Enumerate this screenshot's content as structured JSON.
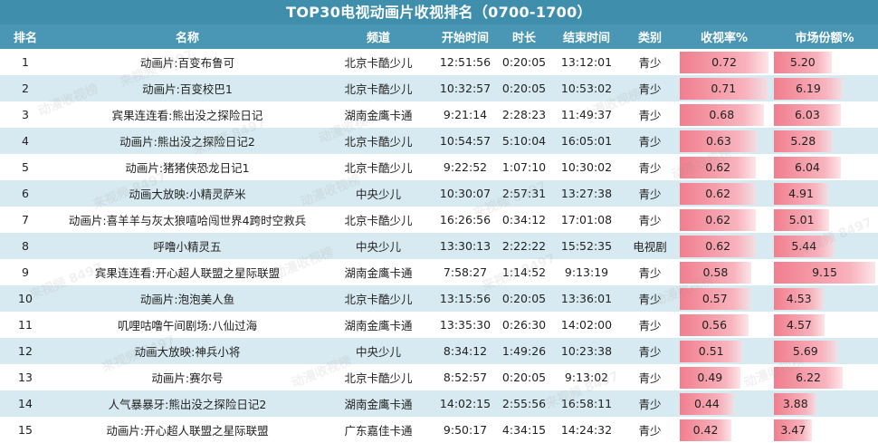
{
  "title": "TOP30电视动画片收视排名（0700-1700）",
  "headers": [
    "排名",
    "名称",
    "频道",
    "开始时间",
    "时长",
    "结束时间",
    "类别",
    "收视率%",
    "市场份额%"
  ],
  "rows": [
    {
      "rank": "1",
      "name": "动画片:百变布鲁可",
      "channel": "北京卡酷少儿",
      "start": "12:51:56",
      "duration": "0:20:05",
      "end": "13:12:01",
      "category": "青少",
      "rating": "0.72",
      "share": "5.20"
    },
    {
      "rank": "2",
      "name": "动画片:百变校巴1",
      "channel": "北京卡酷少儿",
      "start": "10:32:57",
      "duration": "0:20:05",
      "end": "10:53:02",
      "category": "青少",
      "rating": "0.71",
      "share": "6.19"
    },
    {
      "rank": "3",
      "name": "宾果连连看:熊出没之探险日记",
      "channel": "湖南金鹰卡通",
      "start": "9:21:14",
      "duration": "2:28:23",
      "end": "11:49:37",
      "category": "青少",
      "rating": "0.68",
      "share": "6.03"
    },
    {
      "rank": "4",
      "name": "动画片:熊出没之探险日记2",
      "channel": "北京卡酷少儿",
      "start": "10:54:57",
      "duration": "5:10:04",
      "end": "16:05:01",
      "category": "青少",
      "rating": "0.63",
      "share": "5.28"
    },
    {
      "rank": "5",
      "name": "动画片:猪猪侠恐龙日记1",
      "channel": "北京卡酷少儿",
      "start": "9:22:52",
      "duration": "1:07:10",
      "end": "10:30:02",
      "category": "青少",
      "rating": "0.62",
      "share": "6.04"
    },
    {
      "rank": "6",
      "name": "动画大放映:小精灵萨米",
      "channel": "中央少儿",
      "start": "10:30:07",
      "duration": "2:57:31",
      "end": "13:27:38",
      "category": "青少",
      "rating": "0.62",
      "share": "4.91"
    },
    {
      "rank": "7",
      "name": "动画片:喜羊羊与灰太狼嘻哈闯世界4跨时空救兵",
      "channel": "北京卡酷少儿",
      "start": "16:26:56",
      "duration": "0:34:12",
      "end": "17:01:08",
      "category": "青少",
      "rating": "0.62",
      "share": "5.01"
    },
    {
      "rank": "8",
      "name": "呼噜小精灵五",
      "channel": "中央少儿",
      "start": "13:30:13",
      "duration": "2:22:22",
      "end": "15:52:35",
      "category": "电视剧",
      "rating": "0.62",
      "share": "5.44"
    },
    {
      "rank": "9",
      "name": "宾果连连看:开心超人联盟之星际联盟",
      "channel": "湖南金鹰卡通",
      "start": "7:58:27",
      "duration": "1:14:52",
      "end": "9:13:19",
      "category": "青少",
      "rating": "0.58",
      "share": "9.15"
    },
    {
      "rank": "10",
      "name": "动画片:泡泡美人鱼",
      "channel": "北京卡酷少儿",
      "start": "13:15:56",
      "duration": "0:20:05",
      "end": "13:36:01",
      "category": "青少",
      "rating": "0.57",
      "share": "4.53"
    },
    {
      "rank": "11",
      "name": "叽哩咕噜午间剧场:八仙过海",
      "channel": "湖南金鹰卡通",
      "start": "13:35:30",
      "duration": "0:26:30",
      "end": "14:02:00",
      "category": "青少",
      "rating": "0.56",
      "share": "4.57"
    },
    {
      "rank": "12",
      "name": "动画大放映:神兵小将",
      "channel": "中央少儿",
      "start": "8:34:12",
      "duration": "1:49:26",
      "end": "10:23:38",
      "category": "青少",
      "rating": "0.51",
      "share": "5.69"
    },
    {
      "rank": "13",
      "name": "动画片:赛尔号",
      "channel": "北京卡酷少儿",
      "start": "8:52:57",
      "duration": "0:20:05",
      "end": "9:13:02",
      "category": "青少",
      "rating": "0.49",
      "share": "6.22"
    },
    {
      "rank": "14",
      "name": "人气暴暴牙:熊出没之探险日记2",
      "channel": "湖南金鹰卡通",
      "start": "14:02:15",
      "duration": "2:55:56",
      "end": "16:58:11",
      "category": "青少",
      "rating": "0.44",
      "share": "3.88"
    },
    {
      "rank": "15",
      "name": "动画片:开心超人联盟之星际联盟",
      "channel": "广东嘉佳卡通",
      "start": "9:50:17",
      "duration": "4:34:15",
      "end": "14:24:32",
      "category": "青少",
      "rating": "0.42",
      "share": "3.47"
    }
  ],
  "databar": {
    "rating_max": 0.72,
    "share_max": 9.15,
    "color": "#f17e8e"
  },
  "watermark": {
    "lines": [
      "动漫收视榜",
      "来视频 8497"
    ]
  },
  "colors": {
    "header_bg": "#4a97b5",
    "title_bg": "#3f8fac",
    "row_alt_bg": "#d8eaf1"
  }
}
